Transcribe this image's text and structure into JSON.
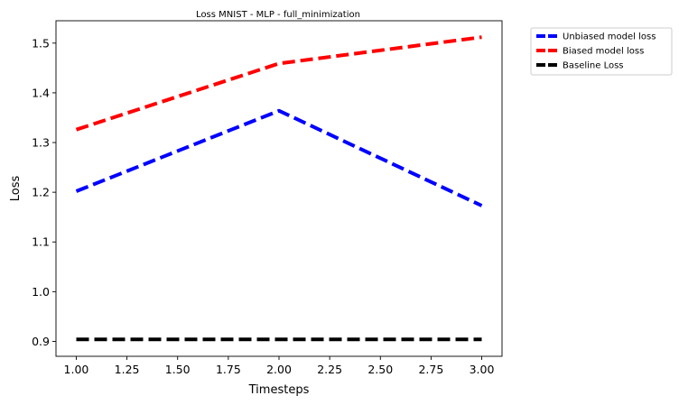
{
  "chart_data": {
    "type": "line",
    "title": "Loss MNIST - MLP - full_minimization",
    "xlabel": "Timesteps",
    "ylabel": "Loss",
    "x": [
      1.0,
      2.0,
      3.0
    ],
    "xlim": [
      0.9,
      3.1
    ],
    "ylim": [
      0.87,
      1.545
    ],
    "xticks": [
      "1.00",
      "1.25",
      "1.50",
      "1.75",
      "2.00",
      "2.25",
      "2.50",
      "2.75",
      "3.00"
    ],
    "xtick_values": [
      1.0,
      1.25,
      1.5,
      1.75,
      2.0,
      2.25,
      2.5,
      2.75,
      3.0
    ],
    "yticks": [
      "0.9",
      "1.0",
      "1.1",
      "1.2",
      "1.3",
      "1.4",
      "1.5"
    ],
    "ytick_values": [
      0.9,
      1.0,
      1.1,
      1.2,
      1.3,
      1.4,
      1.5
    ],
    "grid": false,
    "legend_position": "outside-top-right",
    "series": [
      {
        "name": "Unbiased model loss",
        "color": "#0000ff",
        "style": "dashed",
        "values": [
          1.202,
          1.364,
          1.173
        ]
      },
      {
        "name": "Biased model loss",
        "color": "#ff0000",
        "style": "dashed",
        "values": [
          1.326,
          1.459,
          1.512
        ]
      },
      {
        "name": "Baseline Loss",
        "color": "#000000",
        "style": "dashed",
        "values": [
          0.904,
          0.904,
          0.904
        ]
      }
    ]
  }
}
